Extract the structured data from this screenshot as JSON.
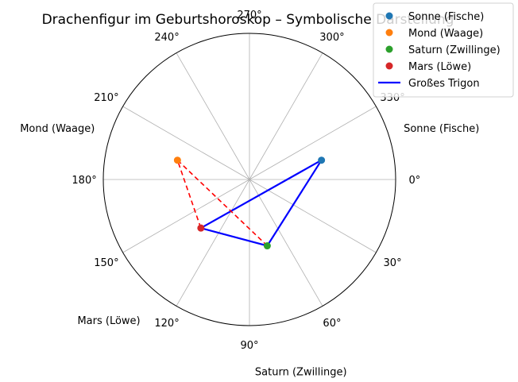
{
  "chart_data": {
    "type": "scatter",
    "subtype": "polar",
    "title": "Drachenfigur im Geburtshoroskop – Symbolische Darstellung",
    "theta_direction": "clockwise",
    "theta_zero": "right",
    "theta_ticks": [
      "0°",
      "30°",
      "60°",
      "90°",
      "120°",
      "150°",
      "180°",
      "210°",
      "240°",
      "270°",
      "300°",
      "330°"
    ],
    "rlim": [
      0,
      1
    ],
    "grid": true,
    "points": [
      {
        "name": "Sonne (Fische)",
        "label": "Sonne (Fische)",
        "theta_deg": 345,
        "r": 0.51,
        "color": "#1f77b4"
      },
      {
        "name": "Mond (Waage)",
        "label": "Mond (Waage)",
        "theta_deg": 195,
        "r": 0.51,
        "color": "#ff7f0e"
      },
      {
        "name": "Saturn (Zwillinge)",
        "label": "Saturn (Zwillinge)",
        "theta_deg": 75,
        "r": 0.47,
        "color": "#2ca02c"
      },
      {
        "name": "Mars (Löwe)",
        "label": "Mars (Löwe)",
        "theta_deg": 135,
        "r": 0.47,
        "color": "#d62728"
      }
    ],
    "lines": [
      {
        "name": "Großes Trigon",
        "style": "solid",
        "color": "#0000ff",
        "path": [
          "Sonne (Fische)",
          "Saturn (Zwillinge)",
          "Mars (Löwe)",
          "Sonne (Fische)"
        ]
      },
      {
        "name": "",
        "style": "dashed",
        "color": "#ff0000",
        "path": [
          "Saturn (Zwillinge)",
          "Mond (Waage)",
          "Mars (Löwe)"
        ]
      }
    ],
    "legend": {
      "placement": "top-right",
      "entries": [
        {
          "label": "Sonne (Fische)",
          "kind": "marker",
          "color": "#1f77b4"
        },
        {
          "label": "Mond (Waage)",
          "kind": "marker",
          "color": "#ff7f0e"
        },
        {
          "label": "Saturn (Zwillinge)",
          "kind": "marker",
          "color": "#2ca02c"
        },
        {
          "label": "Mars (Löwe)",
          "kind": "marker",
          "color": "#d62728"
        },
        {
          "label": "Großes Trigon",
          "kind": "line",
          "color": "#0000ff"
        }
      ]
    }
  }
}
